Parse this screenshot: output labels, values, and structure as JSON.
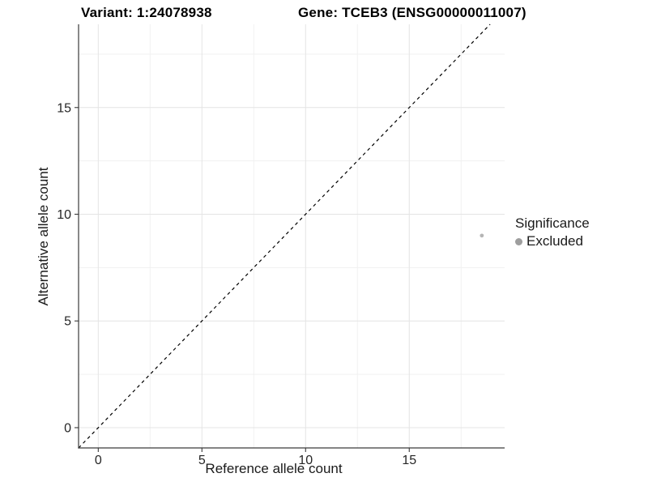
{
  "header": {
    "variant_title": "Variant: 1:24078938",
    "gene_title": "Gene: TCEB3 (ENSG00000011007)"
  },
  "chart_data": {
    "type": "scatter",
    "xlabel": "Reference allele count",
    "ylabel": "Alternative allele count",
    "x_ticks": [
      0,
      5,
      10,
      15
    ],
    "y_ticks": [
      0,
      5,
      10,
      15
    ],
    "x_minor_ticks": [
      2.5,
      7.5,
      12.5,
      17.5
    ],
    "y_minor_ticks": [
      2.5,
      7.5,
      12.5,
      17.5
    ],
    "xlim": [
      -0.95,
      19.6
    ],
    "ylim": [
      -0.95,
      18.9
    ],
    "grid": "major and minor, very light gray, white background",
    "points": [
      {
        "x": 18.5,
        "y": 9,
        "significance": "Excluded"
      }
    ],
    "reference_line": {
      "type": "identity",
      "slope": 1,
      "intercept": 0,
      "style": "dashed",
      "color": "#000000"
    },
    "legend": {
      "title": "Significance",
      "position": "right",
      "items": [
        {
          "label": "Excluded",
          "color": "#9e9e9e"
        }
      ]
    }
  },
  "colors": {
    "background": "#ffffff",
    "point": "#b5b5b5",
    "legend_point": "#9e9e9e",
    "grid_major": "#e4e4e4",
    "grid_minor": "#f1f1f1",
    "axis_line": "#3a3a3a",
    "tick_label": "#262626",
    "title_text": "#000000"
  }
}
